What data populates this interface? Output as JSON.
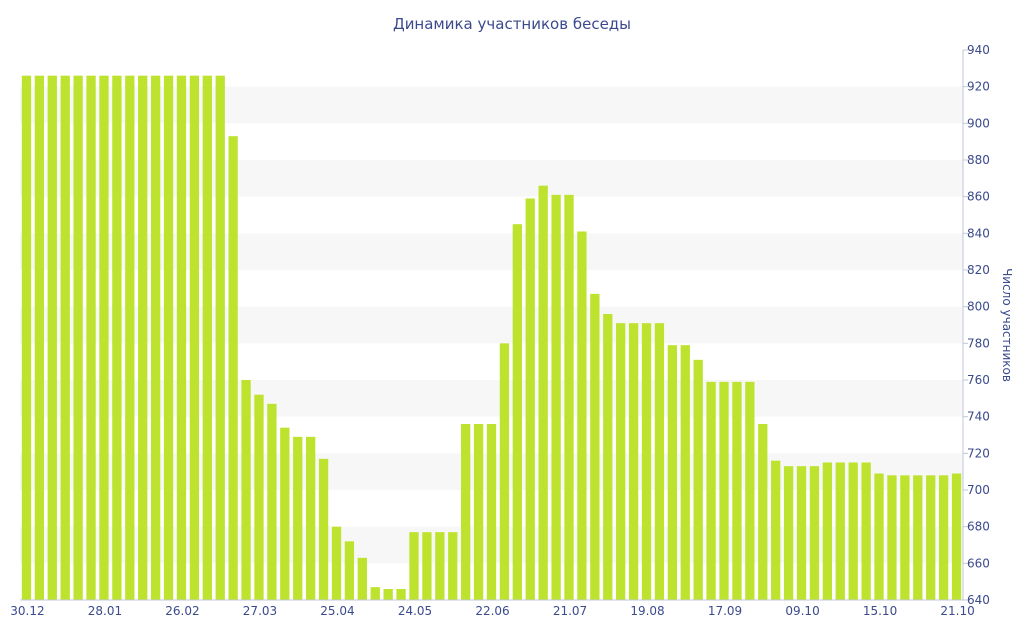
{
  "chart_data": {
    "type": "bar",
    "title": "Динамика участников беседы",
    "ylabel": "Число участников",
    "xlabel": "",
    "ylim": [
      640,
      940
    ],
    "yticks": [
      640,
      660,
      680,
      700,
      720,
      740,
      760,
      780,
      800,
      820,
      840,
      860,
      880,
      900,
      920,
      940
    ],
    "y_axis_position": "right",
    "grid": "horizontal-bands",
    "bar_color": "#bde32f",
    "band_color": "#f7f7f7",
    "text_color": "#3b4a8c",
    "x_tick_labels": [
      {
        "label": "30.12",
        "index": 0
      },
      {
        "label": "28.01",
        "index": 6
      },
      {
        "label": "26.02",
        "index": 12
      },
      {
        "label": "27.03",
        "index": 18
      },
      {
        "label": "25.04",
        "index": 24
      },
      {
        "label": "24.05",
        "index": 30
      },
      {
        "label": "22.06",
        "index": 36
      },
      {
        "label": "21.07",
        "index": 42
      },
      {
        "label": "19.08",
        "index": 48
      },
      {
        "label": "17.09",
        "index": 54
      },
      {
        "label": "09.10",
        "index": 60
      },
      {
        "label": "15.10",
        "index": 66
      },
      {
        "label": "21.10",
        "index": 72
      }
    ],
    "values": [
      926,
      926,
      926,
      926,
      926,
      926,
      926,
      926,
      926,
      926,
      926,
      926,
      926,
      926,
      926,
      926,
      893,
      760,
      752,
      747,
      734,
      729,
      729,
      717,
      680,
      672,
      663,
      647,
      646,
      646,
      677,
      677,
      677,
      677,
      736,
      736,
      736,
      780,
      845,
      859,
      866,
      861,
      861,
      841,
      807,
      796,
      791,
      791,
      791,
      791,
      779,
      779,
      771,
      759,
      759,
      759,
      759,
      736,
      716,
      713,
      713,
      713,
      715,
      715,
      715,
      715,
      709,
      708,
      708,
      708,
      708,
      708,
      709
    ]
  }
}
